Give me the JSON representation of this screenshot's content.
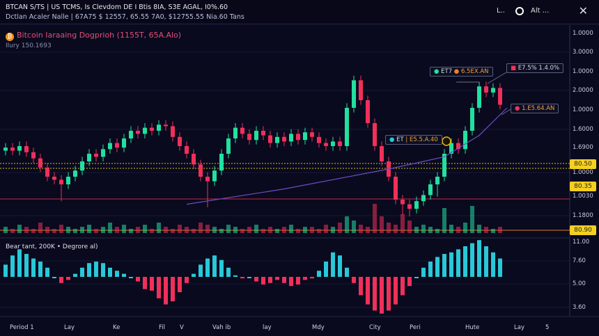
{
  "header": {
    "line1": "BTCAN S/TS | US TCMS, Is Clevdom  DE I Btis 8IA, S3E AGAL, I0%.60",
    "line2": "Dctlan Acaler Nalle  |  67A75 $  12557, 65.55 7A0,   $12755.55  Nia.60 Tans",
    "right_short": "L..",
    "alt_label": "Alt ...",
    "close_icon": "✕"
  },
  "chart_title": "Bitcoin Iaraaing Dogprioh (1155T, 65A.Alo)",
  "chart_subtitle": "Ilury 150.1693",
  "btc_symbol": "₿",
  "indicator_label": "Bear tant, 200K  •  Degrore al)",
  "annotations": [
    {
      "text1": "ET7",
      "text2": "6.5EX.AN"
    },
    {
      "text1": "E7.5% 1.4.0%"
    },
    {
      "text1": "1.E5.64.AN"
    },
    {
      "text1": "ET",
      "text2": "E5.5.A.40"
    }
  ],
  "colors": {
    "up": "#22e0a0",
    "down": "#f0305a",
    "ma": "#6a4fc0",
    "tag": "#f5d020",
    "indicator_up": "#28c8d8"
  },
  "chart_data": {
    "type": "candlestick",
    "price_axis_labels": [
      "1.0000",
      "3.0000",
      "1.0000",
      "2.0000",
      "1.0000",
      "1.6000",
      "1.6900",
      "1.0000",
      "1.0030",
      "1.1800"
    ],
    "indicator_axis_labels": [
      "11.00",
      "7.60",
      "5.00",
      "3.60"
    ],
    "price_tags": [
      "80.50",
      "80.35",
      "80.90"
    ],
    "x_labels": [
      "Period 1",
      "Lay",
      "Ke",
      "Fil",
      "V",
      "Vah ib",
      "lay",
      "Mdy",
      "City",
      "Peri",
      "Hute",
      "Lay",
      "5"
    ],
    "candles": [
      [
        47,
        52,
        44,
        49
      ],
      [
        49,
        52,
        44,
        47
      ],
      [
        47,
        53,
        44,
        50
      ],
      [
        50,
        53,
        43,
        46
      ],
      [
        46,
        49,
        39,
        42
      ],
      [
        42,
        45,
        33,
        36
      ],
      [
        36,
        39,
        27,
        30
      ],
      [
        30,
        33,
        25,
        28
      ],
      [
        28,
        31,
        14,
        25
      ],
      [
        25,
        33,
        22,
        30
      ],
      [
        30,
        37,
        27,
        34
      ],
      [
        34,
        43,
        31,
        40
      ],
      [
        40,
        48,
        37,
        45
      ],
      [
        45,
        48,
        40,
        43
      ],
      [
        43,
        51,
        40,
        48
      ],
      [
        48,
        55,
        45,
        52
      ],
      [
        52,
        55,
        46,
        49
      ],
      [
        49,
        58,
        46,
        55
      ],
      [
        55,
        63,
        52,
        60
      ],
      [
        60,
        63,
        55,
        58
      ],
      [
        58,
        65,
        55,
        62
      ],
      [
        62,
        65,
        57,
        60
      ],
      [
        60,
        67,
        57,
        64
      ],
      [
        64,
        67,
        60,
        63
      ],
      [
        63,
        66,
        53,
        56
      ],
      [
        56,
        59,
        47,
        50
      ],
      [
        50,
        53,
        42,
        45
      ],
      [
        45,
        48,
        35,
        38
      ],
      [
        38,
        41,
        27,
        30
      ],
      [
        30,
        33,
        10,
        27
      ],
      [
        27,
        37,
        24,
        34
      ],
      [
        34,
        48,
        31,
        45
      ],
      [
        45,
        58,
        42,
        55
      ],
      [
        55,
        65,
        52,
        62
      ],
      [
        62,
        65,
        55,
        58
      ],
      [
        58,
        61,
        51,
        54
      ],
      [
        54,
        63,
        51,
        60
      ],
      [
        60,
        63,
        54,
        57
      ],
      [
        57,
        60,
        49,
        52
      ],
      [
        52,
        59,
        49,
        56
      ],
      [
        56,
        59,
        50,
        53
      ],
      [
        53,
        61,
        50,
        58
      ],
      [
        58,
        61,
        51,
        54
      ],
      [
        54,
        62,
        51,
        59
      ],
      [
        59,
        62,
        53,
        56
      ],
      [
        56,
        59,
        49,
        52
      ],
      [
        52,
        55,
        47,
        50
      ],
      [
        50,
        56,
        47,
        53
      ],
      [
        53,
        56,
        47,
        50
      ],
      [
        50,
        78,
        47,
        75
      ],
      [
        75,
        96,
        72,
        93
      ],
      [
        93,
        96,
        77,
        80
      ],
      [
        80,
        83,
        62,
        65
      ],
      [
        65,
        68,
        47,
        50
      ],
      [
        50,
        53,
        37,
        40
      ],
      [
        40,
        43,
        27,
        30
      ],
      [
        30,
        33,
        12,
        15
      ],
      [
        15,
        18,
        5,
        12
      ],
      [
        12,
        15,
        4,
        9
      ],
      [
        9,
        17,
        6,
        14
      ],
      [
        14,
        21,
        11,
        18
      ],
      [
        18,
        28,
        15,
        25
      ],
      [
        25,
        33,
        17,
        30
      ],
      [
        30,
        48,
        27,
        45
      ],
      [
        45,
        55,
        42,
        52
      ],
      [
        52,
        55,
        45,
        48
      ],
      [
        48,
        63,
        45,
        60
      ],
      [
        60,
        78,
        57,
        75
      ],
      [
        75,
        92,
        72,
        89
      ],
      [
        89,
        92,
        82,
        85
      ],
      [
        85,
        91,
        82,
        88
      ],
      [
        88,
        91,
        74,
        77
      ]
    ],
    "volume": [
      3,
      2,
      4,
      3,
      2,
      5,
      3,
      2,
      4,
      3,
      2,
      3,
      4,
      2,
      3,
      5,
      3,
      4,
      2,
      3,
      4,
      2,
      5,
      3,
      2,
      4,
      3,
      2,
      5,
      4,
      3,
      2,
      4,
      3,
      2,
      3,
      4,
      2,
      3,
      2,
      3,
      4,
      2,
      3,
      3,
      2,
      4,
      3,
      5,
      8,
      6,
      4,
      3,
      14,
      8,
      5,
      4,
      9,
      6,
      3,
      4,
      3,
      2,
      12,
      4,
      3,
      5,
      13,
      4,
      3,
      2,
      3
    ],
    "moving_average": [
      [
        26,
        12
      ],
      [
        40,
        22
      ],
      [
        55,
        35
      ],
      [
        63,
        43
      ],
      [
        68,
        57
      ],
      [
        72,
        75
      ]
    ],
    "indicator": [
      8,
      14,
      18,
      15,
      12,
      10,
      6,
      0,
      -4,
      -2,
      2,
      6,
      9,
      10,
      9,
      6,
      4,
      2,
      0,
      -3,
      -8,
      -9,
      -14,
      -18,
      -16,
      -10,
      -4,
      2,
      8,
      12,
      14,
      11,
      6,
      1,
      -1,
      0,
      -3,
      -5,
      -4,
      -2,
      -4,
      -6,
      -5,
      -2,
      -1,
      4,
      10,
      16,
      14,
      6,
      -4,
      -12,
      -18,
      -22,
      -24,
      -22,
      -18,
      -12,
      -6,
      0,
      6,
      10,
      13,
      15,
      16,
      18,
      20,
      22,
      24,
      20,
      16,
      12
    ]
  }
}
